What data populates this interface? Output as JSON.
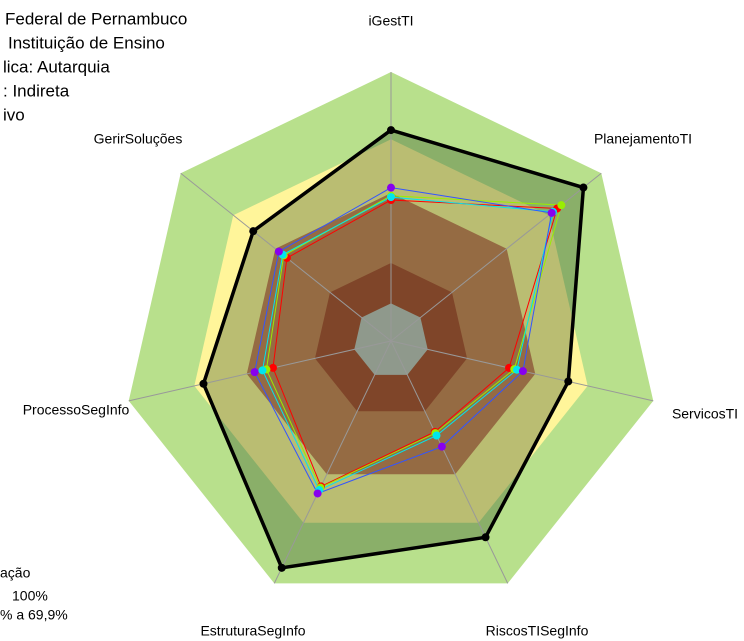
{
  "chart_data": {
    "type": "radar",
    "header_lines": [
      "Federal de Pernambuco",
      "Instituição de Ensino",
      "lica: Autarquia",
      ": Indireta",
      "ivo"
    ],
    "legend_lines": [
      "ação",
      "100%",
      "% a 69,9%"
    ],
    "categories": [
      "iGestTI",
      "PlanejamentoTI",
      "ServicosTI",
      "RiscosTISegInfo",
      "EstruturaSegInfo",
      "ProcessoSegInfo",
      "GerirSoluções"
    ],
    "ylim": [
      0,
      100
    ],
    "bands": [
      {
        "value": 100,
        "color": "#b8e08c"
      },
      {
        "value": 75,
        "color": "#fff59a"
      },
      {
        "value": 55,
        "color": "#c97d55"
      },
      {
        "value": 29,
        "color": "#a8442e"
      },
      {
        "value": 14,
        "color": "#c0c0c0"
      }
    ],
    "series": [
      {
        "color": "#000000",
        "fill": "rgba(40,70,30,0.32)",
        "values": [
          78.4,
          91.5,
          67.6,
          81,
          93.6,
          71.5,
          65.5
        ]
      },
      {
        "color": "#ff0000",
        "values": [
          52.4,
          79,
          45,
          37.5,
          60,
          45,
          49.5
        ]
      },
      {
        "color": "#99ee00",
        "values": [
          54,
          81,
          47,
          38,
          60.5,
          47.5,
          51
        ]
      },
      {
        "color": "#00e5ee",
        "values": [
          53.5,
          77,
          48,
          39,
          61.5,
          49,
          51.5
        ]
      },
      {
        "color": "#8800ee",
        "line_color": "#3355ff",
        "values": [
          57,
          76.4,
          50.3,
          43.6,
          62.9,
          52,
          53.3
        ]
      }
    ]
  }
}
